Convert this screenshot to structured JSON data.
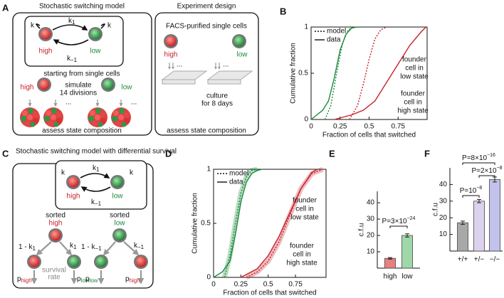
{
  "panel_labels": [
    "A",
    "B",
    "C",
    "D",
    "E",
    "F"
  ],
  "diagram_a": {
    "model_title": "Stochastic switching model",
    "design_title": "Experiment design",
    "k_left": "k",
    "k_right": "k",
    "k_forward": {
      "base": "k",
      "sub": "1"
    },
    "k_back": {
      "base": "k",
      "sub": "−1"
    },
    "high": "high",
    "low": "low",
    "start": "starting from single cells",
    "start_high": "high",
    "start_low": "low",
    "simulate": [
      "simulate",
      "14 divisions"
    ],
    "ellipsis_left": "...",
    "ellipsis_right": "...",
    "assess_model": "assess state composition",
    "facs": "FACS-purified single cells",
    "facs_high": "high",
    "facs_low": "low",
    "plate_dots_left": "...",
    "plate_dots_right": "...",
    "culture": [
      "culture",
      "for 8 days"
    ],
    "assess_design": "assess state composition"
  },
  "diagram_c": {
    "title": "Stochastic switching model with differential survival",
    "k_left": "k",
    "k_right": "k",
    "k_forward": {
      "base": "k",
      "sub": "1"
    },
    "k_back": {
      "base": "k",
      "sub": "−1"
    },
    "high": "high",
    "low": "low",
    "sorted_left": {
      "word": "sorted",
      "state": "high"
    },
    "sorted_right": {
      "word": "sorted",
      "state": "low"
    },
    "left_stay": {
      "base": "1 - k",
      "sub": "1"
    },
    "left_switch": {
      "base": "k",
      "sub": "1"
    },
    "right_stay": {
      "base": "1 - k",
      "sub": "−1"
    },
    "right_switch": {
      "base": "k",
      "sub": "−1"
    },
    "p_left_1": {
      "base": "p",
      "sub": "high"
    },
    "p_left_2": {
      "base": "p",
      "sub": "low"
    },
    "p_right_1": {
      "base": "p",
      "sub": "low"
    },
    "p_right_2": {
      "base": "p",
      "sub": "high"
    },
    "survival": [
      "survival",
      "rate"
    ]
  },
  "chart_data": [
    {
      "type": "line",
      "xlabel": "Fraction of cells that switched",
      "ylabel": "Cumulative fraction",
      "xlim": [
        0,
        1
      ],
      "ylim": [
        0,
        1
      ],
      "xticks": [
        0,
        0.25,
        0.5,
        0.75
      ],
      "yticks": [
        0,
        0.5,
        1
      ],
      "legend": [
        {
          "label": "model",
          "dashed": true
        },
        {
          "label": "data",
          "dashed": false
        }
      ],
      "series": [
        {
          "color": "#1b8a3c",
          "dashed": false,
          "x": [
            0,
            0.05,
            0.1,
            0.15,
            0.2,
            0.25,
            0.3,
            0.35,
            0.4
          ],
          "values": [
            0,
            0.05,
            0.1,
            0.2,
            0.45,
            0.75,
            0.92,
            0.99,
            1
          ]
        },
        {
          "color": "#1b8a3c",
          "dashed": true,
          "x": [
            0.12,
            0.17,
            0.22,
            0.27,
            0.32,
            0.37
          ],
          "values": [
            0,
            0.15,
            0.5,
            0.82,
            0.97,
            1
          ]
        },
        {
          "color": "#c8202a",
          "dashed": false,
          "x": [
            0.2,
            0.35,
            0.45,
            0.55,
            0.65,
            0.75,
            0.85,
            0.95,
            0.99
          ],
          "values": [
            0,
            0.05,
            0.1,
            0.2,
            0.4,
            0.6,
            0.8,
            0.95,
            1
          ]
        },
        {
          "color": "#c8202a",
          "dashed": true,
          "x": [
            0.33,
            0.4,
            0.45,
            0.5,
            0.55,
            0.6,
            0.65
          ],
          "values": [
            0,
            0.15,
            0.38,
            0.65,
            0.87,
            0.97,
            1
          ]
        }
      ],
      "annotations": [
        {
          "lines": [
            "founder",
            "cell in",
            "low state"
          ],
          "color": "#1b8a3c"
        },
        {
          "lines": [
            "founder",
            "cell in",
            "high state"
          ],
          "color": "#c8202a"
        }
      ]
    },
    {
      "type": "line",
      "xlabel": "Fraction of cells that switched",
      "ylabel": "Cumulative fraction",
      "xlim": [
        0,
        1.03
      ],
      "ylim": [
        0,
        1
      ],
      "xticks": [
        0,
        0.25,
        0.5,
        0.75
      ],
      "yticks": [
        0,
        0.5,
        1
      ],
      "legend": [
        {
          "label": "model",
          "dashed": true
        },
        {
          "label": "data",
          "dashed": false
        }
      ],
      "series": [
        {
          "color": "#1b8a3c",
          "dashed": false,
          "x": [
            0,
            0.08,
            0.15,
            0.2,
            0.25,
            0.3,
            0.35,
            0.4,
            0.45
          ],
          "values": [
            0,
            0.05,
            0.15,
            0.4,
            0.7,
            0.88,
            0.96,
            0.99,
            1
          ]
        },
        {
          "color": "#1b8a3c",
          "dashed": true,
          "shaded": true,
          "x": [
            0.1,
            0.15,
            0.2,
            0.25,
            0.3,
            0.35,
            0.4
          ],
          "values": [
            0,
            0.2,
            0.5,
            0.78,
            0.93,
            0.99,
            1
          ]
        },
        {
          "color": "#c8202a",
          "dashed": false,
          "x": [
            0.25,
            0.4,
            0.5,
            0.6,
            0.7,
            0.8,
            0.9,
            0.95
          ],
          "values": [
            0,
            0.08,
            0.2,
            0.38,
            0.6,
            0.82,
            0.97,
            1
          ]
        },
        {
          "color": "#c8202a",
          "dashed": true,
          "shaded": true,
          "x": [
            0.3,
            0.4,
            0.5,
            0.6,
            0.7,
            0.8,
            0.9,
            1
          ],
          "values": [
            0,
            0.05,
            0.15,
            0.33,
            0.58,
            0.82,
            0.96,
            1
          ]
        }
      ],
      "annotations": [
        {
          "lines": [
            "founder",
            "cell in",
            "low state"
          ],
          "color": "#1b8a3c"
        },
        {
          "lines": [
            "founder",
            "cell in",
            "high state"
          ],
          "color": "#c8202a"
        }
      ]
    },
    {
      "type": "bar",
      "ylabel": "c.f.u",
      "categories": [
        "high",
        "low"
      ],
      "category_colors": [
        "#c8202a",
        "#1b8a3c"
      ],
      "values": [
        6,
        20
      ],
      "errors": [
        0.5,
        1
      ],
      "colors": [
        "#e88080",
        "#9fd8a8"
      ],
      "ylim": [
        0,
        47
      ],
      "yticks": [
        10,
        20,
        30,
        40
      ],
      "comparisons": [
        {
          "base": "P=3×10",
          "exponent": "−24"
        }
      ]
    },
    {
      "type": "bar",
      "ylabel": "c.f.u",
      "categories": [
        "+/+",
        "+/−",
        "−/−"
      ],
      "category_colors": [
        "#222222",
        "#6a3d9a",
        "#6a3d9a"
      ],
      "values": [
        17,
        30,
        43
      ],
      "errors": [
        1,
        1,
        1.5
      ],
      "colors": [
        "#a8a8a8",
        "#ddd2ee",
        "#c2c2ec"
      ],
      "ylim": [
        0,
        50
      ],
      "yticks": [
        10,
        20,
        30,
        40
      ],
      "comparisons": [
        {
          "base": "P=10",
          "exponent": "−8"
        },
        {
          "base": "P=2×10",
          "exponent": "−8"
        },
        {
          "base": "P=8×10",
          "exponent": "−16"
        }
      ]
    }
  ]
}
